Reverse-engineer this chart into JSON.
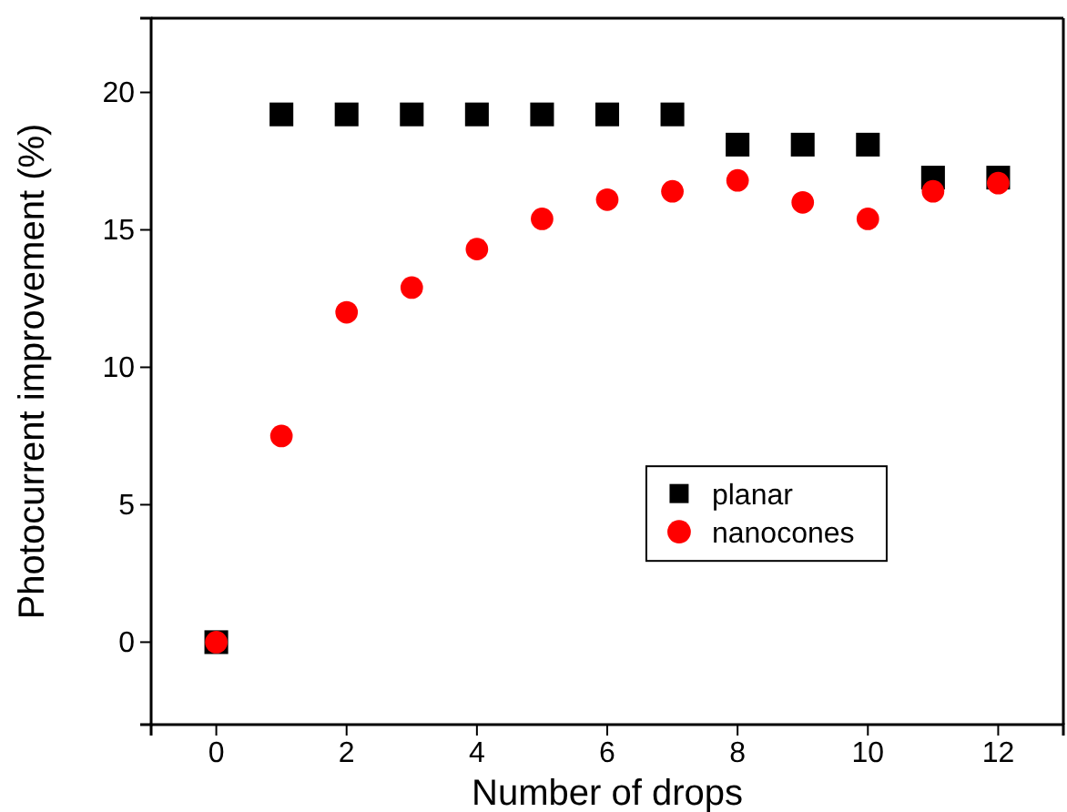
{
  "chart_data": {
    "type": "scatter",
    "xlabel": "Number of drops",
    "ylabel": "Photocurrent improvement (%)",
    "x": [
      0,
      1,
      2,
      3,
      4,
      5,
      6,
      7,
      8,
      9,
      10,
      11,
      12
    ],
    "series": [
      {
        "name": "planar",
        "color": "#000000",
        "marker": "square",
        "values": [
          0,
          19.2,
          19.2,
          19.2,
          19.2,
          19.2,
          19.2,
          19.2,
          18.1,
          18.1,
          18.1,
          16.9,
          16.9
        ]
      },
      {
        "name": "nanocones",
        "color": "#ff0000",
        "marker": "circle",
        "values": [
          0,
          7.5,
          12.0,
          12.9,
          14.3,
          15.4,
          16.1,
          16.4,
          16.8,
          16.0,
          15.4,
          16.4,
          16.7
        ]
      }
    ],
    "xlim": [
      -1,
      13
    ],
    "xticks": [
      0,
      2,
      4,
      6,
      8,
      10,
      12
    ],
    "ylim": [
      -3,
      22.7
    ],
    "yticks": [
      0,
      5,
      10,
      15,
      20
    ],
    "grid": false,
    "legend": "right"
  }
}
